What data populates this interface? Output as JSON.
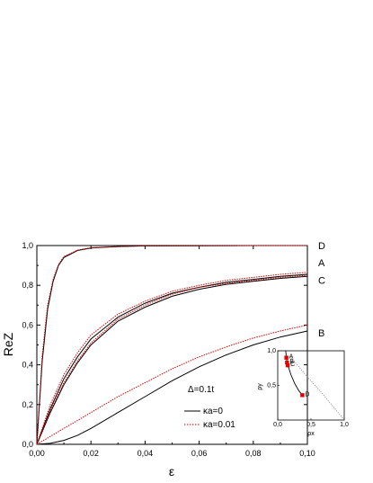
{
  "chart_data": {
    "type": "line",
    "xlabel": "ε",
    "ylabel": "ReZ",
    "xlim": [
      0,
      0.1
    ],
    "ylim": [
      0,
      1.0
    ],
    "x_ticks": [
      "0,00",
      "0,02",
      "0,04",
      "0,06",
      "0,08",
      "0,10"
    ],
    "y_ticks": [
      "0,0",
      "0,2",
      "0,4",
      "0,6",
      "0,8",
      "1,0"
    ],
    "annotation": "Δ=0.1t",
    "legend": {
      "placement": "bottom-right",
      "entries": [
        {
          "label": "κa=0",
          "color": "#000000",
          "dash": "solid"
        },
        {
          "label": "κa=0.01",
          "color": "#d40000",
          "dash": "dotted"
        }
      ]
    },
    "curve_labels": [
      "D",
      "A",
      "C",
      "B"
    ],
    "series": [
      {
        "curve": "D",
        "variant": "κa=0",
        "color": "#000000",
        "x": [
          0,
          0.002,
          0.004,
          0.006,
          0.008,
          0.01,
          0.015,
          0.02,
          0.03,
          0.04,
          0.06,
          0.08,
          0.1
        ],
        "y": [
          0,
          0.42,
          0.68,
          0.82,
          0.9,
          0.94,
          0.975,
          0.988,
          0.995,
          0.998,
          0.999,
          1.0,
          1.0
        ]
      },
      {
        "curve": "D",
        "variant": "κa=0.01",
        "color": "#d40000",
        "x": [
          0,
          0.002,
          0.004,
          0.006,
          0.008,
          0.01,
          0.015,
          0.02,
          0.03,
          0.04,
          0.06,
          0.08,
          0.1
        ],
        "y": [
          0,
          0.45,
          0.7,
          0.83,
          0.905,
          0.945,
          0.977,
          0.989,
          0.995,
          0.998,
          0.999,
          1.0,
          1.0
        ]
      },
      {
        "curve": "A",
        "variant": "κa=0",
        "color": "#000000",
        "x": [
          0,
          0.005,
          0.01,
          0.015,
          0.02,
          0.03,
          0.04,
          0.05,
          0.06,
          0.07,
          0.08,
          0.09,
          0.1
        ],
        "y": [
          0,
          0.18,
          0.33,
          0.44,
          0.53,
          0.64,
          0.71,
          0.76,
          0.79,
          0.815,
          0.83,
          0.845,
          0.855
        ]
      },
      {
        "curve": "A",
        "variant": "κa=0.01",
        "color": "#d40000",
        "x": [
          0,
          0.005,
          0.01,
          0.015,
          0.02,
          0.03,
          0.04,
          0.05,
          0.06,
          0.07,
          0.08,
          0.09,
          0.1
        ],
        "y": [
          0,
          0.2,
          0.35,
          0.46,
          0.55,
          0.655,
          0.72,
          0.77,
          0.8,
          0.825,
          0.84,
          0.855,
          0.865
        ]
      },
      {
        "curve": "C",
        "variant": "κa=0",
        "color": "#000000",
        "x": [
          0,
          0.005,
          0.01,
          0.015,
          0.02,
          0.03,
          0.04,
          0.05,
          0.06,
          0.07,
          0.08,
          0.09,
          0.1
        ],
        "y": [
          0,
          0.16,
          0.3,
          0.41,
          0.5,
          0.62,
          0.69,
          0.745,
          0.78,
          0.805,
          0.82,
          0.835,
          0.845
        ]
      },
      {
        "curve": "C",
        "variant": "κa=0.01",
        "color": "#d40000",
        "x": [
          0,
          0.005,
          0.01,
          0.015,
          0.02,
          0.03,
          0.04,
          0.05,
          0.06,
          0.07,
          0.08,
          0.09,
          0.1
        ],
        "y": [
          0,
          0.17,
          0.31,
          0.42,
          0.51,
          0.63,
          0.7,
          0.755,
          0.79,
          0.81,
          0.825,
          0.84,
          0.85
        ]
      },
      {
        "curve": "B",
        "variant": "κa=0",
        "color": "#000000",
        "x": [
          0,
          0.005,
          0.01,
          0.015,
          0.02,
          0.03,
          0.04,
          0.05,
          0.06,
          0.07,
          0.08,
          0.09,
          0.1
        ],
        "y": [
          0,
          0.005,
          0.02,
          0.045,
          0.08,
          0.16,
          0.24,
          0.32,
          0.39,
          0.45,
          0.5,
          0.54,
          0.57
        ]
      },
      {
        "curve": "B",
        "variant": "κa=0.01",
        "color": "#d40000",
        "x": [
          0,
          0.005,
          0.01,
          0.015,
          0.02,
          0.03,
          0.04,
          0.05,
          0.06,
          0.07,
          0.08,
          0.09,
          0.1
        ],
        "y": [
          0,
          0.04,
          0.08,
          0.12,
          0.16,
          0.24,
          0.31,
          0.38,
          0.44,
          0.49,
          0.535,
          0.57,
          0.6
        ]
      }
    ],
    "inset": {
      "type": "line",
      "xlabel": "ρx",
      "ylabel": "ρy",
      "xlim": [
        0,
        1.0
      ],
      "ylim": [
        0,
        1.0
      ],
      "x_ticks": [
        "0,0",
        "0,5",
        "1,0"
      ],
      "y_ticks": [
        "0,5",
        "1,0"
      ],
      "solid_curve": {
        "x": [
          0.12,
          0.13,
          0.15,
          0.2,
          0.26,
          0.32,
          0.37
        ],
        "y": [
          1.0,
          0.9,
          0.8,
          0.65,
          0.52,
          0.42,
          0.36
        ]
      },
      "dotted_line": {
        "x": [
          0.2,
          0.45,
          0.7,
          1.0
        ],
        "y": [
          0.9,
          0.62,
          0.35,
          0.0
        ]
      },
      "points": [
        {
          "label": "A",
          "x": 0.13,
          "y": 0.9
        },
        {
          "label": "B",
          "x": 0.14,
          "y": 0.83
        },
        {
          "label": "C",
          "x": 0.15,
          "y": 0.79
        },
        {
          "label": "D",
          "x": 0.37,
          "y": 0.36
        }
      ]
    }
  }
}
